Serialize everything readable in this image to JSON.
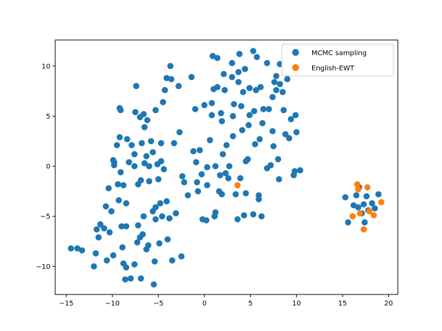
{
  "chart_data": {
    "type": "scatter",
    "title": "",
    "xlabel": "",
    "ylabel": "",
    "xlim": [
      -16.2,
      21.0
    ],
    "ylim": [
      -12.8,
      12.6
    ],
    "xticks": [
      -15,
      -10,
      -5,
      0,
      5,
      10,
      15,
      20
    ],
    "yticks": [
      -10,
      -5,
      0,
      5,
      10
    ],
    "grid": false,
    "legend_position": "top-right",
    "series": [
      {
        "name": "MCMC sampling",
        "color": "#1f77b4",
        "points": [
          [
            -14.5,
            -8.2
          ],
          [
            -13.8,
            -8.2
          ],
          [
            -13.3,
            -8.4
          ],
          [
            -12.0,
            -10.0
          ],
          [
            -11.8,
            -8.7
          ],
          [
            -11.7,
            -6.3
          ],
          [
            -11.5,
            -7.1
          ],
          [
            -11.3,
            -5.8
          ],
          [
            -10.9,
            -6.2
          ],
          [
            -10.7,
            -4.0
          ],
          [
            -10.6,
            -9.4
          ],
          [
            -10.4,
            -2.2
          ],
          [
            -10.3,
            -6.6
          ],
          [
            -10.1,
            -4.5
          ],
          [
            -9.9,
            -8.9
          ],
          [
            -9.9,
            0.6
          ],
          [
            -9.8,
            0.1
          ],
          [
            -9.8,
            0.4
          ],
          [
            -9.5,
            2.1
          ],
          [
            -9.4,
            -1.8
          ],
          [
            -9.3,
            -3.4
          ],
          [
            -9.2,
            2.9
          ],
          [
            -9.2,
            5.8
          ],
          [
            -9.1,
            5.6
          ],
          [
            -9.1,
            -0.6
          ],
          [
            -9.0,
            -6.0
          ],
          [
            -8.9,
            -8.1
          ],
          [
            -8.8,
            -9.7
          ],
          [
            -8.8,
            -1.9
          ],
          [
            -8.6,
            -11.3
          ],
          [
            -8.5,
            -10.1
          ],
          [
            -8.5,
            -6.0
          ],
          [
            -8.5,
            -3.7
          ],
          [
            -8.4,
            2.7
          ],
          [
            -8.2,
            0.4
          ],
          [
            -8.0,
            -11.2
          ],
          [
            -7.9,
            2.1
          ],
          [
            -7.6,
            -9.8
          ],
          [
            -7.6,
            1.2
          ],
          [
            -7.6,
            0.0
          ],
          [
            -7.5,
            5.4
          ],
          [
            -7.4,
            8.0
          ],
          [
            -7.3,
            -7.6
          ],
          [
            -7.2,
            -5.9
          ],
          [
            -7.2,
            -1.8
          ],
          [
            -7.0,
            -7.1
          ],
          [
            -7.0,
            4.9
          ],
          [
            -6.9,
            -11.2
          ],
          [
            -6.9,
            -1.4
          ],
          [
            -6.8,
            2.3
          ],
          [
            -6.7,
            -6.8
          ],
          [
            -6.6,
            -5.0
          ],
          [
            -6.6,
            5.2
          ],
          [
            -6.5,
            0.3
          ],
          [
            -6.5,
            3.9
          ],
          [
            -6.3,
            -8.3
          ],
          [
            -6.3,
            1.0
          ],
          [
            -6.2,
            4.6
          ],
          [
            -6.1,
            -7.9
          ],
          [
            -6.0,
            0.0
          ],
          [
            -6.0,
            -1.5
          ],
          [
            -5.8,
            2.5
          ],
          [
            -5.6,
            -4.5
          ],
          [
            -5.6,
            1.4
          ],
          [
            -5.5,
            -11.8
          ],
          [
            -5.4,
            -9.5
          ],
          [
            -5.3,
            -5.3
          ],
          [
            -5.3,
            -4.1
          ],
          [
            -5.3,
            5.6
          ],
          [
            -5.1,
            0.2
          ],
          [
            -5.0,
            -1.3
          ],
          [
            -4.9,
            -7.7
          ],
          [
            -4.8,
            -3.7
          ],
          [
            -4.7,
            0.5
          ],
          [
            -4.7,
            2.3
          ],
          [
            -4.6,
            -5.0
          ],
          [
            -4.5,
            6.4
          ],
          [
            -4.4,
            -0.3
          ],
          [
            -4.3,
            7.6
          ],
          [
            -4.1,
            8.8
          ],
          [
            -4.1,
            -3.5
          ],
          [
            -4.0,
            -7.3
          ],
          [
            -3.8,
            -5.2
          ],
          [
            -3.7,
            10.0
          ],
          [
            -3.6,
            8.7
          ],
          [
            -3.5,
            -9.4
          ],
          [
            -3.3,
            2.3
          ],
          [
            -3.1,
            -4.7
          ],
          [
            -2.8,
            8.0
          ],
          [
            -2.7,
            3.4
          ],
          [
            -2.5,
            -9.0
          ],
          [
            -2.4,
            -1.0
          ],
          [
            -2.2,
            -1.6
          ],
          [
            -1.8,
            -2.9
          ],
          [
            -1.4,
            8.9
          ],
          [
            -1.2,
            1.5
          ],
          [
            -1.0,
            5.7
          ],
          [
            -0.9,
            0.4
          ],
          [
            -0.8,
            -1.6
          ],
          [
            -0.7,
            -2.5
          ],
          [
            -0.5,
            1.6
          ],
          [
            -0.3,
            -0.8
          ],
          [
            -0.2,
            -5.3
          ],
          [
            0.0,
            6.1
          ],
          [
            0.2,
            -5.4
          ],
          [
            0.3,
            -1.9
          ],
          [
            0.3,
            -0.1
          ],
          [
            0.6,
            2.6
          ],
          [
            0.8,
            6.3
          ],
          [
            0.8,
            5.1
          ],
          [
            0.9,
            11.0
          ],
          [
            1.0,
            7.7
          ],
          [
            1.1,
            -5.0
          ],
          [
            1.2,
            -4.6
          ],
          [
            1.2,
            0.0
          ],
          [
            1.4,
            10.8
          ],
          [
            1.4,
            7.9
          ],
          [
            1.6,
            -2.5
          ],
          [
            1.7,
            -0.9
          ],
          [
            1.8,
            5.3
          ],
          [
            1.9,
            -2.8
          ],
          [
            1.9,
            4.5
          ],
          [
            2.0,
            1.2
          ],
          [
            2.1,
            9.2
          ],
          [
            2.2,
            7.6
          ],
          [
            2.3,
            -0.7
          ],
          [
            2.4,
            2.1
          ],
          [
            2.6,
            -1.2
          ],
          [
            2.7,
            0.0
          ],
          [
            3.0,
            10.3
          ],
          [
            3.0,
            8.9
          ],
          [
            3.1,
            5.0
          ],
          [
            3.1,
            3.0
          ],
          [
            3.2,
            6.2
          ],
          [
            3.4,
            -2.8
          ],
          [
            3.6,
            -5.3
          ],
          [
            3.7,
            8.4
          ],
          [
            3.7,
            9.4
          ],
          [
            3.8,
            11.2
          ],
          [
            3.9,
            -1.2
          ],
          [
            4.0,
            6.0
          ],
          [
            4.1,
            3.6
          ],
          [
            4.2,
            7.4
          ],
          [
            4.3,
            -4.9
          ],
          [
            4.4,
            9.7
          ],
          [
            4.5,
            -2.7
          ],
          [
            4.5,
            0.5
          ],
          [
            4.7,
            0.7
          ],
          [
            4.8,
            4.1
          ],
          [
            4.9,
            7.8
          ],
          [
            4.9,
            5.1
          ],
          [
            5.3,
            -4.8
          ],
          [
            5.3,
            11.5
          ],
          [
            5.4,
            5.5
          ],
          [
            5.5,
            2.2
          ],
          [
            5.6,
            7.6
          ],
          [
            5.7,
            10.9
          ],
          [
            5.9,
            -2.9
          ],
          [
            5.9,
            -3.3
          ],
          [
            6.0,
            2.7
          ],
          [
            6.1,
            7.9
          ],
          [
            6.2,
            -5.0
          ],
          [
            6.3,
            4.3
          ],
          [
            6.4,
            5.7
          ],
          [
            6.8,
            10.3
          ],
          [
            6.8,
            -0.2
          ],
          [
            7.0,
            5.7
          ],
          [
            7.2,
            0.1
          ],
          [
            7.4,
            6.9
          ],
          [
            7.4,
            3.5
          ],
          [
            7.5,
            2.0
          ],
          [
            7.6,
            8.4
          ],
          [
            7.8,
            9.0
          ],
          [
            7.8,
            7.6
          ],
          [
            8.0,
            0.7
          ],
          [
            8.1,
            -1.3
          ],
          [
            8.2,
            10.2
          ],
          [
            8.2,
            8.2
          ],
          [
            8.5,
            7.4
          ],
          [
            8.6,
            5.6
          ],
          [
            8.8,
            3.2
          ],
          [
            9.0,
            8.7
          ],
          [
            9.2,
            2.8
          ],
          [
            9.4,
            4.7
          ],
          [
            9.7,
            -0.9
          ],
          [
            9.8,
            -0.5
          ],
          [
            9.9,
            5.1
          ],
          [
            10.0,
            3.4
          ],
          [
            10.4,
            -0.4
          ],
          [
            15.3,
            -3.1
          ],
          [
            15.6,
            -5.6
          ],
          [
            16.2,
            -3.9
          ],
          [
            16.5,
            -2.9
          ],
          [
            16.7,
            -4.1
          ],
          [
            16.8,
            -2.1
          ],
          [
            17.1,
            -4.7
          ],
          [
            17.3,
            -3.8
          ],
          [
            17.4,
            -5.6
          ],
          [
            17.6,
            -3.0
          ],
          [
            17.8,
            -4.4
          ],
          [
            18.2,
            -3.7
          ],
          [
            18.5,
            -4.2
          ],
          [
            18.9,
            -2.8
          ]
        ]
      },
      {
        "name": "English-EWT",
        "color": "#ff7f0e",
        "points": [
          [
            3.6,
            -1.9
          ],
          [
            16.1,
            -5.0
          ],
          [
            16.6,
            -1.8
          ],
          [
            16.7,
            -2.3
          ],
          [
            16.9,
            -4.7
          ],
          [
            17.3,
            -6.3
          ],
          [
            17.7,
            -2.1
          ],
          [
            17.9,
            -4.5
          ],
          [
            18.4,
            -4.9
          ],
          [
            19.2,
            -3.6
          ]
        ]
      }
    ]
  }
}
